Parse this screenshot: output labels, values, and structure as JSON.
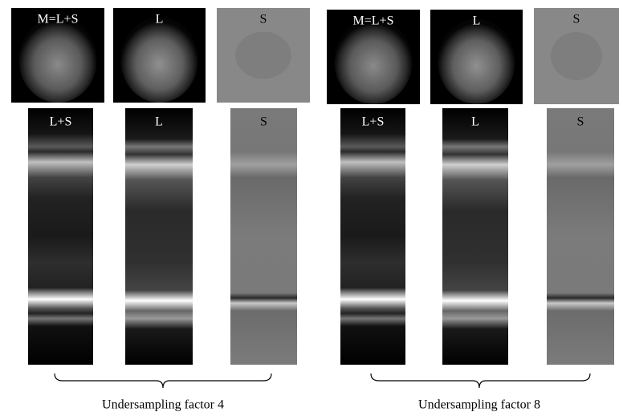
{
  "panels": [
    {
      "top_labels": [
        "M=L+S",
        "L",
        "S"
      ],
      "bottom_labels": [
        "L+S",
        "L",
        "S"
      ],
      "caption": "Undersampling factor 4"
    },
    {
      "top_labels": [
        "M=L+S",
        "L",
        "S"
      ],
      "bottom_labels": [
        "L+S",
        "L",
        "S"
      ],
      "caption": "Undersampling factor 8"
    }
  ]
}
